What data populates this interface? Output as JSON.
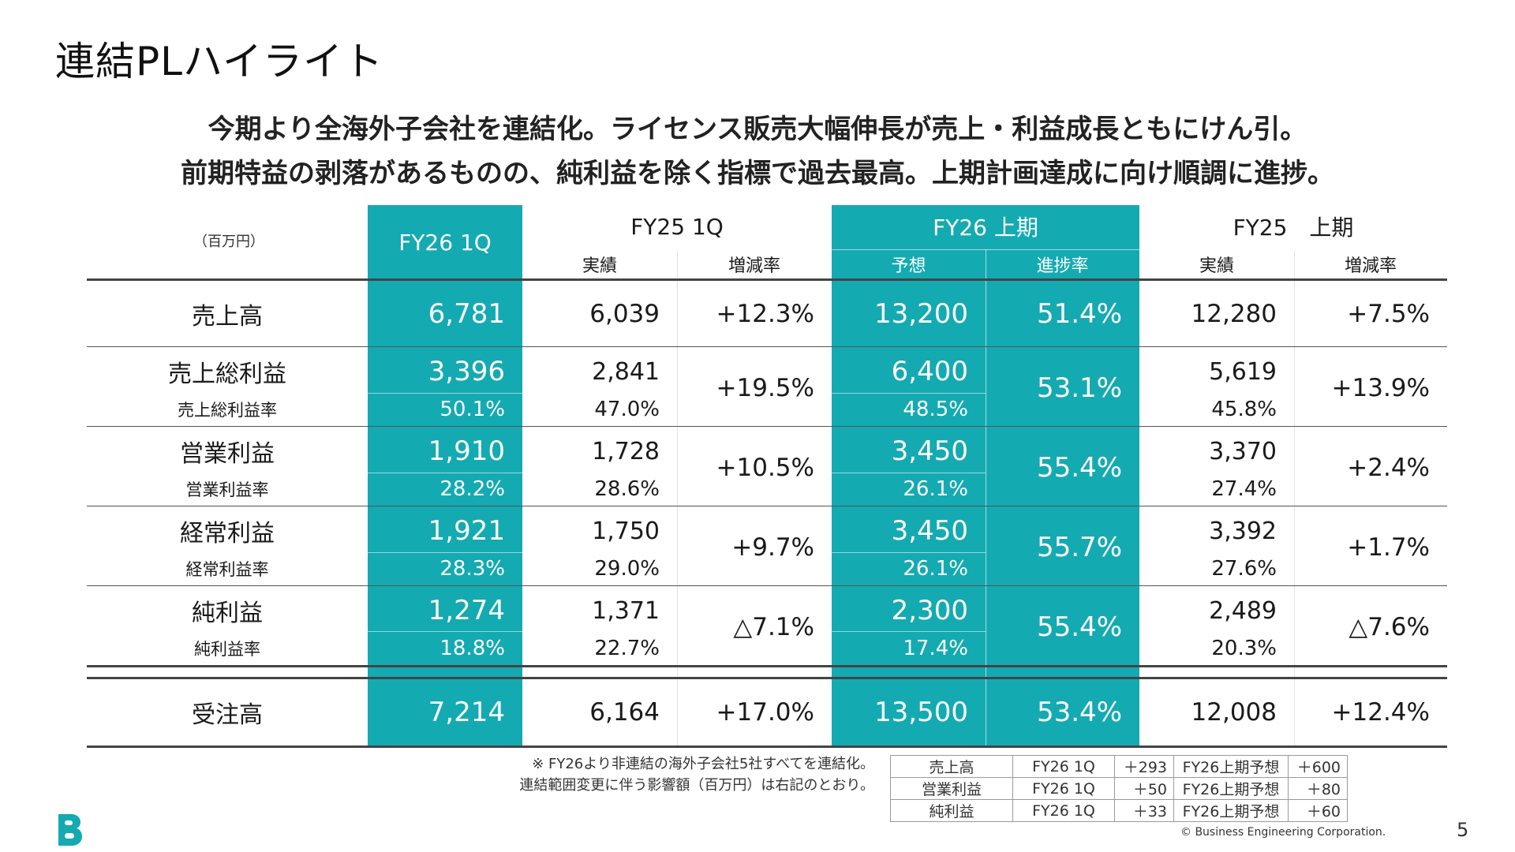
{
  "page": {
    "title": "連結PLハイライト",
    "subtitle_lines": [
      "今期より全海外子会社を連結化。ライセンス販売大幅伸長が売上・利益成長ともにけん引。",
      "前期特益の剥落があるものの、純利益を除く指標で過去最高。上期計画達成に向け順調に進捗。"
    ],
    "unit": "（百万円）",
    "page_number": "5",
    "copyright": "© Business Engineering Corporation."
  },
  "colors": {
    "accent": "#14aab2"
  },
  "icons": {
    "logo": "b-logo-icon"
  },
  "headers": {
    "fy26_1q": "FY26 1Q",
    "fy25_1q": "FY25 1Q",
    "fy25_1q_actual": "実績",
    "fy25_1q_change": "増減率",
    "fy26_h1": "FY26 上期",
    "fy26_h1_forecast": "予想",
    "fy26_h1_progress": "進捗率",
    "fy25_h1": "FY25　上期",
    "fy25_h1_actual": "実績",
    "fy25_h1_change": "増減率"
  },
  "rows": {
    "sales": {
      "label": "売上高",
      "fy26_1q": "6,781",
      "fy25_1q": "6,039",
      "change_1q": "+12.3%",
      "forecast_h1": "13,200",
      "progress": "51.4%",
      "fy25_h1": "12,280",
      "change_h1": "+7.5%"
    },
    "gross_profit": {
      "label": "売上総利益",
      "fy26_1q": "3,396",
      "fy25_1q": "2,841",
      "change_1q": "+19.5%",
      "forecast_h1": "6,400",
      "progress": "53.1%",
      "fy25_h1": "5,619",
      "change_h1": "+13.9%",
      "rate_label": "売上総利益率",
      "rate_fy26_1q": "50.1%",
      "rate_fy25_1q": "47.0%",
      "rate_forecast_h1": "48.5%",
      "rate_fy25_h1": "45.8%"
    },
    "operating_profit": {
      "label": "営業利益",
      "fy26_1q": "1,910",
      "fy25_1q": "1,728",
      "change_1q": "+10.5%",
      "forecast_h1": "3,450",
      "progress": "55.4%",
      "fy25_h1": "3,370",
      "change_h1": "+2.4%",
      "rate_label": "営業利益率",
      "rate_fy26_1q": "28.2%",
      "rate_fy25_1q": "28.6%",
      "rate_forecast_h1": "26.1%",
      "rate_fy25_h1": "27.4%"
    },
    "ordinary_profit": {
      "label": "経常利益",
      "fy26_1q": "1,921",
      "fy25_1q": "1,750",
      "change_1q": "+9.7%",
      "forecast_h1": "3,450",
      "progress": "55.7%",
      "fy25_h1": "3,392",
      "change_h1": "+1.7%",
      "rate_label": "経常利益率",
      "rate_fy26_1q": "28.3%",
      "rate_fy25_1q": "29.0%",
      "rate_forecast_h1": "26.1%",
      "rate_fy25_h1": "27.6%"
    },
    "net_profit": {
      "label": "純利益",
      "fy26_1q": "1,274",
      "fy25_1q": "1,371",
      "change_1q": "△7.1%",
      "forecast_h1": "2,300",
      "progress": "55.4%",
      "fy25_h1": "2,489",
      "change_h1": "△7.6%",
      "rate_label": "純利益率",
      "rate_fy26_1q": "18.8%",
      "rate_fy25_1q": "22.7%",
      "rate_forecast_h1": "17.4%",
      "rate_fy25_h1": "20.3%"
    },
    "orders": {
      "label": "受注高",
      "fy26_1q": "7,214",
      "fy25_1q": "6,164",
      "change_1q": "+17.0%",
      "forecast_h1": "13,500",
      "progress": "53.4%",
      "fy25_h1": "12,008",
      "change_h1": "+12.4%"
    }
  },
  "notes": [
    "※ FY26より非連結の海外子会社5社すべてを連結化。",
    "連結範囲変更に伴う影響額（百万円）は右記のとおり。"
  ],
  "impact_table": [
    {
      "item": "売上高",
      "period1": "FY26 1Q",
      "value1": "＋293",
      "period2": "FY26上期予想",
      "value2": "＋600"
    },
    {
      "item": "営業利益",
      "period1": "FY26 1Q",
      "value1": "＋50",
      "period2": "FY26上期予想",
      "value2": "＋80"
    },
    {
      "item": "純利益",
      "period1": "FY26 1Q",
      "value1": "＋33",
      "period2": "FY26上期予想",
      "value2": "＋60"
    }
  ]
}
